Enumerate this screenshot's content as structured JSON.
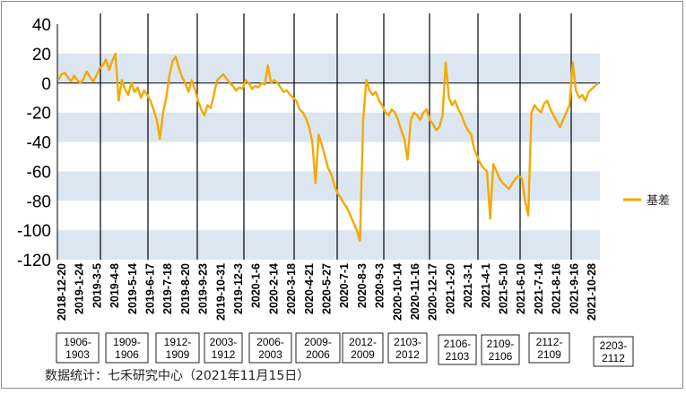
{
  "chart_data": {
    "type": "line",
    "title": "",
    "xlabel": "",
    "ylabel": "",
    "ylim": [
      -120,
      40
    ],
    "y_ticks": [
      40,
      20,
      0,
      -20,
      -40,
      -60,
      -80,
      -100,
      -120
    ],
    "grid": "alternating horizontal bands",
    "legend_position": "right",
    "series": [
      {
        "name": "基差",
        "color": "#f5a800",
        "values": [
          2,
          6,
          7,
          4,
          1,
          5,
          2,
          0,
          3,
          8,
          4,
          1,
          5,
          10,
          12,
          16,
          9,
          15,
          20,
          -12,
          2,
          -4,
          -8,
          0,
          -6,
          -3,
          -10,
          -5,
          -8,
          -12,
          -18,
          -25,
          -38,
          -20,
          -10,
          5,
          15,
          18,
          10,
          4,
          0,
          -6,
          2,
          -4,
          -12,
          -18,
          -22,
          -15,
          -17,
          -8,
          2,
          4,
          6,
          3,
          0,
          -2,
          -5,
          -3,
          -4,
          2,
          0,
          -4,
          -2,
          -3,
          0,
          -1,
          12,
          0,
          2,
          0,
          -3,
          -6,
          -5,
          -8,
          -10,
          -12,
          -18,
          -20,
          -24,
          -30,
          -40,
          -68,
          -35,
          -42,
          -50,
          -58,
          -62,
          -70,
          -75,
          -78,
          -82,
          -85,
          -90,
          -95,
          -100,
          -107,
          -25,
          2,
          -5,
          -8,
          -6,
          -12,
          -15,
          -20,
          -22,
          -18,
          -20,
          -25,
          -32,
          -38,
          -52,
          -25,
          -20,
          -22,
          -25,
          -20,
          -18,
          -25,
          -28,
          -32,
          -30,
          -22,
          14,
          -10,
          -15,
          -12,
          -18,
          -22,
          -28,
          -32,
          -35,
          -45,
          -50,
          -55,
          -58,
          -60,
          -92,
          -55,
          -60,
          -65,
          -68,
          -70,
          -72,
          -68,
          -65,
          -63,
          -65,
          -80,
          -90,
          -20,
          -15,
          -18,
          -20,
          -14,
          -12,
          -18,
          -22,
          -26,
          -30,
          -25,
          -20,
          -15,
          14,
          -5,
          -10,
          -8,
          -12,
          -6,
          -4,
          -2,
          0
        ]
      }
    ],
    "x_tick_labels": [
      "2018-12-20",
      "2019-1-24",
      "2019-3-5",
      "2019-4-8",
      "2019-5-14",
      "2019-6-17",
      "2019-7-18",
      "2019-8-20",
      "2019-9-23",
      "2019-10-31",
      "2019-12-3",
      "2020-1-6",
      "2020-2-14",
      "2020-3-18",
      "2020-4-21",
      "2020-5-27",
      "2020-7-1",
      "2020-8-3",
      "2020-9-3",
      "2020-10-14",
      "2020-11-16",
      "2020-12-17",
      "2021-1-20",
      "2021-3-1",
      "2021-4-1",
      "2021-5-10",
      "2021-6-10",
      "2021-7-14",
      "2021-8-16",
      "2021-9-16",
      "2021-10-28"
    ],
    "contract_periods": [
      {
        "label": "1906-\n1903"
      },
      {
        "label": "1909-\n1906"
      },
      {
        "label": "1912-\n1909"
      },
      {
        "label": "2003-\n1912"
      },
      {
        "label": "2006-\n2003"
      },
      {
        "label": "2009-\n2006"
      },
      {
        "label": "2012-\n2009"
      },
      {
        "label": "2103-\n2012"
      },
      {
        "label": "2106-\n2103"
      },
      {
        "label": "2109-\n2106"
      },
      {
        "label": "2112-\n2109"
      },
      {
        "label": "2203-\n2112"
      }
    ]
  },
  "source_note": "数据统计：七禾研究中心（2021年11月15日）",
  "colors": {
    "line": "#f5a800",
    "band": "#dce6f1",
    "divider": "#000000"
  }
}
